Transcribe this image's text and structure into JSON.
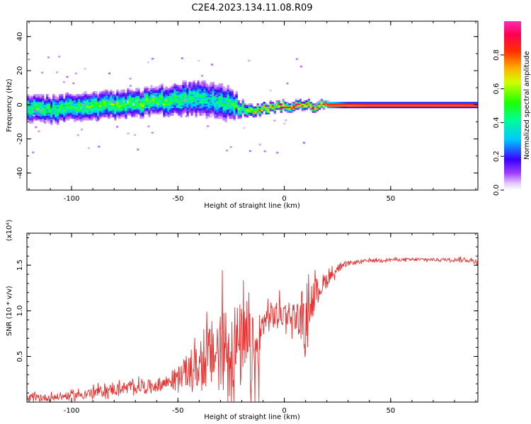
{
  "title": "C2E4.2023.134.11.08.R09",
  "chart_data": [
    {
      "type": "heatmap",
      "xlabel": "Height of straight line (km)",
      "ylabel": "Frequency (Hz)",
      "xlim": [
        -121,
        91
      ],
      "ylim": [
        -50,
        49
      ],
      "x_ticks": [
        -100,
        -50,
        0,
        50
      ],
      "y_ticks": [
        -40,
        -20,
        0,
        20,
        40
      ],
      "colorbar": {
        "label": "Normalized spectral amplitude",
        "range": [
          0,
          1
        ],
        "ticks": [
          0.0,
          0.2,
          0.4,
          0.6,
          0.8
        ],
        "tick_labels": [
          "0.0",
          "0.2",
          "0.4",
          "0.6",
          "0.8"
        ],
        "colormap": "rainbow (white-violet-blue-cyan-green-yellow-red-magenta)"
      },
      "ridge": {
        "x": [
          -121,
          -110,
          -100,
          -90,
          -80,
          -70,
          -60,
          -50,
          -40,
          -35,
          -30,
          -25,
          -20,
          -15,
          -10,
          -5,
          0,
          5,
          10,
          15,
          20,
          30,
          40,
          50,
          60,
          70,
          80,
          91
        ],
        "center_hz": [
          -2,
          -3,
          -2,
          -1,
          0,
          1,
          2,
          3,
          4,
          3,
          2,
          1,
          -2,
          -3,
          -2,
          -1,
          0,
          -1,
          0,
          -1,
          0,
          0,
          0,
          0,
          0,
          0,
          0,
          0
        ],
        "spread_hz": [
          6,
          6,
          6,
          6,
          6,
          6,
          6,
          7,
          8,
          8,
          8,
          7,
          3,
          2.5,
          2.2,
          2,
          2,
          2,
          2,
          1.8,
          1.5,
          1.2,
          1.2,
          1.2,
          1.2,
          1.2,
          1.2,
          1.2
        ],
        "peak_amplitude": [
          0.45,
          0.45,
          0.45,
          0.5,
          0.5,
          0.5,
          0.5,
          0.45,
          0.4,
          0.35,
          0.4,
          0.45,
          0.55,
          0.6,
          0.7,
          0.75,
          0.85,
          0.8,
          0.75,
          0.8,
          0.9,
          0.95,
          0.98,
          0.98,
          0.98,
          0.98,
          0.98,
          0.98
        ]
      }
    },
    {
      "type": "line",
      "xlabel": "Height of straight line (km)",
      "ylabel": "SNR (10 * v/v)",
      "y_multiplier": "(x10⁴)",
      "xlim": [
        -121,
        91
      ],
      "ylim": [
        0,
        1.85
      ],
      "x_ticks": [
        -100,
        -50,
        0,
        50
      ],
      "y_ticks": [
        0.5,
        1.0,
        1.5
      ],
      "y_tick_labels": [
        "0.5",
        "1.0",
        "1.5"
      ],
      "series": [
        {
          "color": "#e8312f",
          "envelope_x": [
            -121,
            -110,
            -100,
            -90,
            -80,
            -70,
            -60,
            -55,
            -50,
            -45,
            -40,
            -35,
            -30,
            -25,
            -20,
            -15,
            -12,
            -10,
            -5,
            0,
            5,
            10,
            12,
            15,
            20,
            25,
            30,
            40,
            50,
            60,
            70,
            80,
            85,
            91
          ],
          "envelope_mean": [
            0.04,
            0.05,
            0.07,
            0.1,
            0.14,
            0.17,
            0.18,
            0.22,
            0.28,
            0.33,
            0.4,
            0.5,
            0.6,
            0.62,
            0.6,
            0.55,
            0.5,
            0.9,
            0.95,
            0.98,
            0.95,
            0.85,
            1.1,
            1.2,
            1.35,
            1.45,
            1.52,
            1.55,
            1.56,
            1.56,
            1.56,
            1.56,
            1.56,
            1.54
          ],
          "envelope_amp": [
            0.05,
            0.05,
            0.05,
            0.07,
            0.08,
            0.08,
            0.09,
            0.1,
            0.14,
            0.2,
            0.3,
            0.45,
            0.6,
            0.65,
            0.6,
            0.5,
            0.4,
            0.2,
            0.2,
            0.18,
            0.2,
            0.3,
            0.3,
            0.2,
            0.1,
            0.05,
            0.03,
            0.02,
            0.02,
            0.02,
            0.02,
            0.02,
            0.03,
            0.03
          ]
        }
      ]
    }
  ]
}
